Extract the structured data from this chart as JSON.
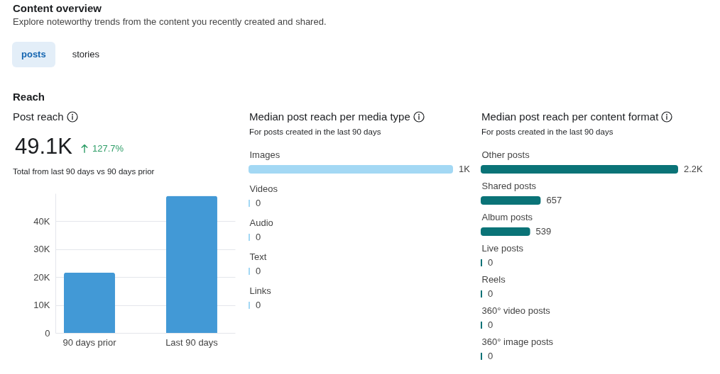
{
  "chart_data": [
    {
      "type": "other",
      "title": "Content overview",
      "subtitle": "Explore noteworthy trends from the content you recently created and shared.",
      "annotations": [
        "posts",
        "stories",
        "Reach"
      ]
    },
    {
      "type": "bar",
      "title": "Post reach",
      "annotations": [
        "49.1K",
        "127.7%",
        "Total from last 90 days vs 90 days prior"
      ],
      "categories": [
        "90 days prior",
        "Last 90 days"
      ],
      "values": [
        21600,
        49100
      ],
      "color": "#4299d6",
      "ylim": [
        0,
        50000
      ],
      "yticks": [
        0,
        {
          "value": 10000,
          "label": "10K"
        },
        {
          "value": 20000,
          "label": "20K"
        },
        {
          "value": 30000,
          "label": "30K"
        },
        {
          "value": 40000,
          "label": "40K"
        }
      ],
      "grid": "y"
    },
    {
      "type": "bar",
      "orientation": "horizontal",
      "title": "Median post reach per media type",
      "subtitle": "For posts created in the last 90 days",
      "categories": [
        "Images",
        "Videos",
        "Audio",
        "Text",
        "Links"
      ],
      "values": [
        1000,
        0,
        0,
        0,
        0
      ],
      "value_labels": [
        "1K",
        "0",
        "0",
        "0",
        "0"
      ],
      "color": "#a3d8f4"
    },
    {
      "type": "bar",
      "orientation": "horizontal",
      "title": "Median post reach per content format",
      "subtitle": "For posts created in the last 90 days",
      "categories": [
        "Other posts",
        "Shared posts",
        "Album posts",
        "Live posts",
        "Reels",
        "360° video posts",
        "360° image posts"
      ],
      "values": [
        2200,
        657,
        539,
        0,
        0,
        0,
        0
      ],
      "value_labels": [
        "2.2K",
        "657",
        "539",
        "0",
        "0",
        "0",
        "0"
      ],
      "color": "#0a7377"
    }
  ]
}
